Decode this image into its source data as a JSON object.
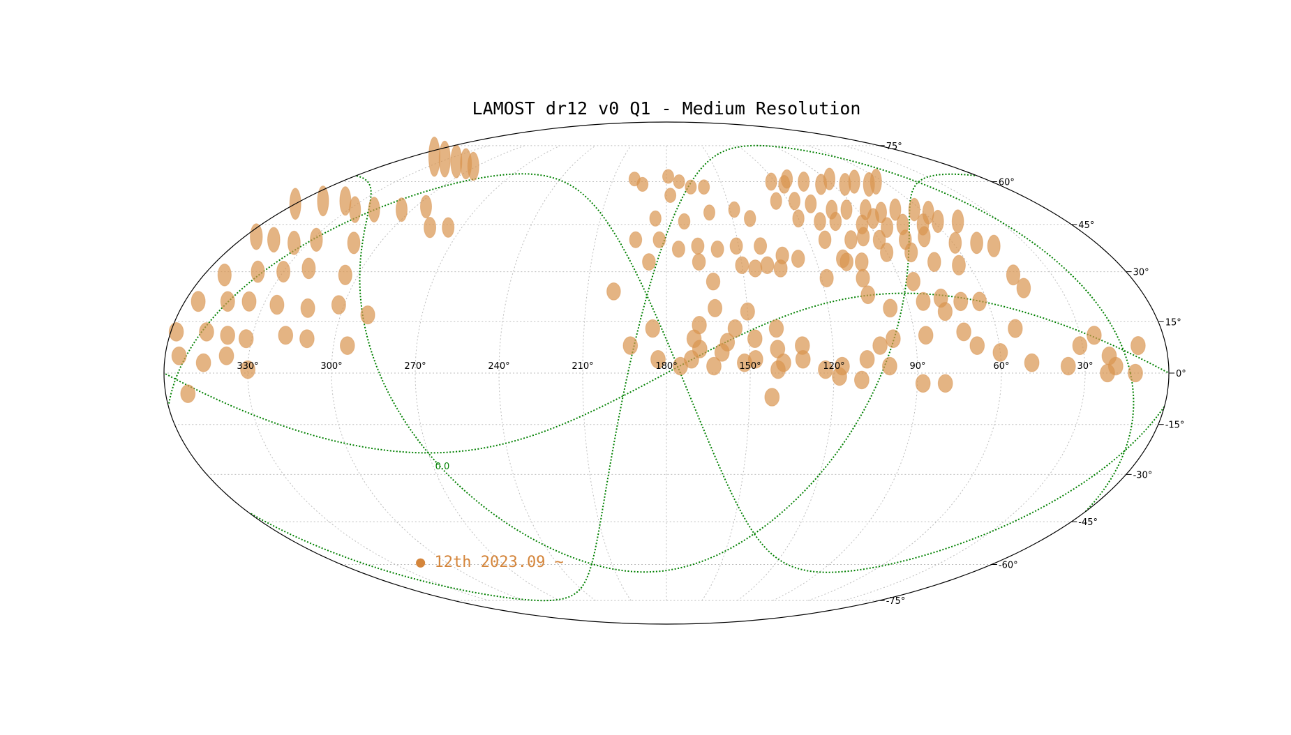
{
  "chart_data": {
    "type": "scatter",
    "projection": "mollweide",
    "title": "LAMOST dr12 v0 Q1 - Medium Resolution",
    "xlabel": "",
    "ylabel": "",
    "xlim": [
      0,
      360
    ],
    "ylim": [
      -90,
      90
    ],
    "grid": true,
    "x_ticks": [
      {
        "value": 330,
        "label": "330°"
      },
      {
        "value": 300,
        "label": "300°"
      },
      {
        "value": 270,
        "label": "270°"
      },
      {
        "value": 240,
        "label": "240°"
      },
      {
        "value": 210,
        "label": "210°"
      },
      {
        "value": 180,
        "label": "180°"
      },
      {
        "value": 150,
        "label": "150°"
      },
      {
        "value": 120,
        "label": "120°"
      },
      {
        "value": 90,
        "label": "90°"
      },
      {
        "value": 60,
        "label": "60°"
      },
      {
        "value": 30,
        "label": "30°"
      }
    ],
    "y_ticks": [
      {
        "value": 75,
        "label": "75°"
      },
      {
        "value": 60,
        "label": "60°"
      },
      {
        "value": 45,
        "label": "45°"
      },
      {
        "value": 30,
        "label": "30°"
      },
      {
        "value": 15,
        "label": "15°"
      },
      {
        "value": 0,
        "label": "0°"
      },
      {
        "value": -15,
        "label": "-15°"
      },
      {
        "value": -30,
        "label": "-30°"
      },
      {
        "value": -45,
        "label": "-45°"
      },
      {
        "value": -60,
        "label": "-60°"
      },
      {
        "value": -75,
        "label": "-75°"
      }
    ],
    "legend": {
      "placement": "lower-left",
      "entries": [
        {
          "label": "● 12th 2023.09 ~",
          "color": "#d4853b"
        }
      ]
    },
    "curve_label": "0.0",
    "colors": {
      "field": "#d9944f",
      "field_dark": "#c9762a",
      "grid": "#bdbdbd",
      "boundary": "#000000",
      "curves": "#008000"
    },
    "series": [
      {
        "name": "12th 2023.09 ~",
        "color": "#d4853b",
        "points": [
          [
            344,
            70
          ],
          [
            332,
            69
          ],
          [
            320,
            68
          ],
          [
            310,
            67
          ],
          [
            302,
            66
          ],
          [
            360,
            52
          ],
          [
            349,
            53
          ],
          [
            338,
            53
          ],
          [
            327,
            50
          ],
          [
            318,
            50
          ],
          [
            305,
            50
          ],
          [
            295,
            51
          ],
          [
            284,
            44
          ],
          [
            276,
            44
          ],
          [
            355,
            41
          ],
          [
            346,
            40
          ],
          [
            336,
            39
          ],
          [
            328,
            40
          ],
          [
            311,
            39
          ],
          [
            352,
            29
          ],
          [
            340,
            30
          ],
          [
            330,
            30
          ],
          [
            321,
            31
          ],
          [
            305,
            29
          ],
          [
            355,
            21
          ],
          [
            344,
            21
          ],
          [
            336,
            21
          ],
          [
            325,
            20
          ],
          [
            313,
            19
          ],
          [
            302,
            20
          ],
          [
            358,
            12
          ],
          [
            347,
            12
          ],
          [
            339,
            11
          ],
          [
            332,
            10
          ],
          [
            318,
            11
          ],
          [
            310,
            10
          ],
          [
            290,
            17
          ],
          [
            295,
            8
          ],
          [
            355,
            5
          ],
          [
            346,
            3
          ],
          [
            338,
            5
          ],
          [
            330,
            1
          ],
          [
            352,
            -6
          ],
          [
            198,
            61
          ],
          [
            193,
            59
          ],
          [
            179,
            62
          ],
          [
            173,
            60
          ],
          [
            167,
            58
          ],
          [
            160,
            58
          ],
          [
            178,
            55
          ],
          [
            185,
            47
          ],
          [
            172,
            46
          ],
          [
            160,
            49
          ],
          [
            148,
            50
          ],
          [
            142,
            47
          ],
          [
            193,
            40
          ],
          [
            183,
            40
          ],
          [
            175,
            37
          ],
          [
            167,
            38
          ],
          [
            151,
            38
          ],
          [
            141,
            38
          ],
          [
            187,
            33
          ],
          [
            167,
            33
          ],
          [
            150,
            32
          ],
          [
            145,
            31
          ],
          [
            140,
            32
          ],
          [
            159,
            37
          ],
          [
            133,
            35
          ],
          [
            127,
            34
          ],
          [
            200,
            24
          ],
          [
            162,
            27
          ],
          [
            135,
            31
          ],
          [
            185,
            13
          ],
          [
            170,
            10
          ],
          [
            155,
            13
          ],
          [
            148,
            10
          ],
          [
            140,
            13
          ],
          [
            193,
            8
          ],
          [
            168,
            7
          ],
          [
            158,
            9
          ],
          [
            148,
            4
          ],
          [
            138,
            3
          ],
          [
            131,
            4
          ],
          [
            183,
            4
          ],
          [
            175,
            2
          ],
          [
            163,
            2
          ],
          [
            140,
            1
          ],
          [
            123,
            1
          ],
          [
            117,
            2
          ],
          [
            152,
            3
          ],
          [
            168,
            14
          ],
          [
            162,
            19
          ],
          [
            150,
            18
          ],
          [
            171,
            4
          ],
          [
            160,
            6
          ],
          [
            140,
            7
          ],
          [
            131,
            8
          ],
          [
            108,
            4
          ],
          [
            142,
            -7
          ],
          [
            118,
            -1
          ],
          [
            110,
            -2
          ],
          [
            100,
            2
          ],
          [
            80,
            -3
          ],
          [
            88,
            -3
          ],
          [
            103,
            8
          ],
          [
            98,
            10
          ],
          [
            86,
            11
          ],
          [
            72,
            12
          ],
          [
            68,
            8
          ],
          [
            109,
            34
          ],
          [
            102,
            33
          ],
          [
            90,
            36
          ],
          [
            80,
            36
          ],
          [
            104,
            23
          ],
          [
            97,
            19
          ],
          [
            84,
            21
          ],
          [
            77,
            22
          ],
          [
            70,
            21
          ],
          [
            63,
            21
          ],
          [
            77,
            18
          ],
          [
            122,
            60
          ],
          [
            116,
            59
          ],
          [
            112,
            61
          ],
          [
            104,
            60
          ],
          [
            96,
            59
          ],
          [
            88,
            61
          ],
          [
            83,
            59
          ],
          [
            76,
            60
          ],
          [
            70,
            59
          ],
          [
            64,
            60
          ],
          [
            126,
            53
          ],
          [
            117,
            53
          ],
          [
            110,
            52
          ],
          [
            102,
            50
          ],
          [
            95,
            50
          ],
          [
            86,
            50
          ],
          [
            80,
            49
          ],
          [
            72,
            50
          ],
          [
            63,
            50
          ],
          [
            58,
            49
          ],
          [
            120,
            47
          ],
          [
            111,
            46
          ],
          [
            104,
            46
          ],
          [
            93,
            45
          ],
          [
            86,
            47
          ],
          [
            83,
            44
          ],
          [
            75,
            45
          ],
          [
            66,
            45
          ],
          [
            58,
            46
          ],
          [
            49,
            46
          ],
          [
            113,
            40
          ],
          [
            102,
            40
          ],
          [
            96,
            41
          ],
          [
            90,
            40
          ],
          [
            79,
            40
          ],
          [
            70,
            41
          ],
          [
            59,
            39
          ],
          [
            50,
            39
          ],
          [
            44,
            38
          ],
          [
            73,
            33
          ],
          [
            64,
            32
          ],
          [
            45,
            29
          ],
          [
            44,
            25
          ],
          [
            118,
            28
          ],
          [
            104,
            28
          ],
          [
            108,
            33
          ],
          [
            85,
            27
          ],
          [
            53,
            13
          ],
          [
            60,
            6
          ],
          [
            49,
            3
          ],
          [
            36,
            2
          ],
          [
            21,
            5
          ],
          [
            19,
            2
          ],
          [
            22,
            0
          ],
          [
            31,
            8
          ],
          [
            25,
            11
          ],
          [
            12,
            0
          ],
          [
            10,
            8
          ]
        ]
      }
    ]
  }
}
